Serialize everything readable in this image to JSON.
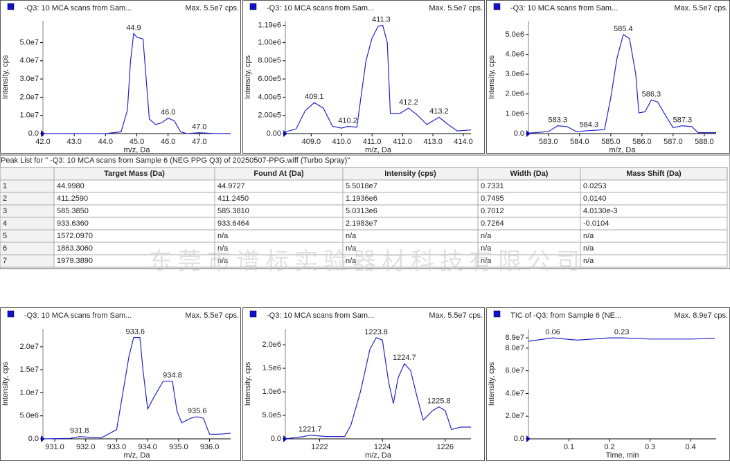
{
  "chart_data": [
    {
      "type": "line",
      "title": "-Q3: 10 MCA scans from Sam...",
      "subtitle": "Max. 5.5e7 cps.",
      "xlabel": "m/z, Da",
      "ylabel": "Intensity, cps",
      "color": "#2323c8",
      "x": [
        42.0,
        43.0,
        44.0,
        44.5,
        44.7,
        44.8,
        44.9,
        45.0,
        45.2,
        45.4,
        45.6,
        45.8,
        46.0,
        46.2,
        46.4,
        46.6,
        47.0,
        47.5,
        48.0
      ],
      "values": [
        0,
        0,
        0,
        1000000,
        13000000,
        40000000,
        55000000,
        53000000,
        52000000,
        8000000,
        5000000,
        6000000,
        8500000,
        7000000,
        1000000,
        0,
        500000,
        0,
        0
      ],
      "xlim": [
        42.0,
        48.0
      ],
      "ylim": [
        0,
        62000000
      ],
      "xticks": [
        {
          "value": 42,
          "label": "42.0"
        },
        {
          "value": 43,
          "label": "43.0"
        },
        {
          "value": 44,
          "label": "44.0"
        },
        {
          "value": 45,
          "label": "45.0"
        },
        {
          "value": 46,
          "label": "46.0"
        },
        {
          "value": 47,
          "label": "47.0"
        }
      ],
      "yticks": [
        {
          "value": 0,
          "label": "0.0"
        },
        {
          "value": 10000000,
          "label": "1.0e7"
        },
        {
          "value": 20000000,
          "label": "2.0e7"
        },
        {
          "value": 30000000,
          "label": "3.0e7"
        },
        {
          "value": 40000000,
          "label": "4.0e7"
        },
        {
          "value": 50000000,
          "label": "5.0e7"
        }
      ],
      "annotations": [
        {
          "text": "44.9",
          "x": 44.9,
          "y": 55000000
        },
        {
          "text": "46.0",
          "x": 46.0,
          "y": 8500000
        },
        {
          "text": "47.0",
          "x": 47.0,
          "y": 500000
        }
      ]
    },
    {
      "type": "line",
      "title": "-Q3: 10 MCA scans from Sam...",
      "subtitle": "Max. 5.5e7 cps.",
      "xlabel": "m/z, Da",
      "ylabel": "Intensity, cps",
      "color": "#2323c8",
      "x": [
        408.15,
        408.5,
        408.8,
        409.1,
        409.4,
        409.7,
        410.0,
        410.2,
        410.5,
        410.8,
        411.0,
        411.2,
        411.35,
        411.5,
        411.6,
        411.9,
        412.2,
        412.5,
        412.8,
        413.2,
        413.5,
        413.8,
        414.25
      ],
      "values": [
        20000,
        50000,
        250000,
        340000,
        280000,
        80000,
        60000,
        80000,
        70000,
        800000,
        1050000,
        1180000,
        1190000,
        1000000,
        220000,
        220000,
        280000,
        200000,
        100000,
        180000,
        100000,
        30000,
        40000
      ],
      "xlim": [
        408.15,
        414.25
      ],
      "ylim": [
        0,
        1240000
      ],
      "xticks": [
        {
          "value": 409,
          "label": "409.0"
        },
        {
          "value": 410,
          "label": "410.0"
        },
        {
          "value": 411,
          "label": "411.0"
        },
        {
          "value": 412,
          "label": "412.0"
        },
        {
          "value": 413,
          "label": "413.0"
        },
        {
          "value": 414,
          "label": "414.0"
        }
      ],
      "yticks": [
        {
          "value": 0,
          "label": "0.00"
        },
        {
          "value": 200000,
          "label": "2.00e5"
        },
        {
          "value": 400000,
          "label": "4.00e5"
        },
        {
          "value": 600000,
          "label": "6.00e5"
        },
        {
          "value": 800000,
          "label": "8.00e5"
        },
        {
          "value": 1000000,
          "label": "1.00e6"
        },
        {
          "value": 1190000,
          "label": "1.19e6"
        }
      ],
      "annotations": [
        {
          "text": "409.1",
          "x": 409.1,
          "y": 340000
        },
        {
          "text": "410.2",
          "x": 410.2,
          "y": 80000
        },
        {
          "text": "411.3",
          "x": 411.3,
          "y": 1190000
        },
        {
          "text": "412.2",
          "x": 412.2,
          "y": 280000
        },
        {
          "text": "413.2",
          "x": 413.2,
          "y": 180000
        }
      ]
    },
    {
      "type": "line",
      "title": "-Q3: 10 MCA scans from Sam...",
      "subtitle": "Max. 5.5e7 cps.",
      "xlabel": "m/z, Da",
      "ylabel": "Intensity, cps",
      "color": "#2323c8",
      "x": [
        582.36,
        583.0,
        583.3,
        583.6,
        583.9,
        584.3,
        584.8,
        585.0,
        585.2,
        585.4,
        585.6,
        585.8,
        585.9,
        586.1,
        586.3,
        586.5,
        586.8,
        587.0,
        587.3,
        587.6,
        587.8,
        588.38
      ],
      "values": [
        20000,
        100000,
        400000,
        350000,
        100000,
        150000,
        200000,
        1800000,
        3800000,
        5000000,
        4800000,
        3000000,
        1050000,
        1100000,
        1700000,
        1600000,
        800000,
        300000,
        400000,
        350000,
        50000,
        50000
      ],
      "xlim": [
        582.36,
        588.38
      ],
      "ylim": [
        0,
        5700000
      ],
      "xticks": [
        {
          "value": 583,
          "label": "583.0"
        },
        {
          "value": 584,
          "label": "584.0"
        },
        {
          "value": 585,
          "label": "585.0"
        },
        {
          "value": 586,
          "label": "586.0"
        },
        {
          "value": 587,
          "label": "587.0"
        },
        {
          "value": 588,
          "label": "588.0"
        }
      ],
      "yticks": [
        {
          "value": 0,
          "label": "0.0"
        },
        {
          "value": 1000000,
          "label": "1.0e6"
        },
        {
          "value": 2000000,
          "label": "2.0e6"
        },
        {
          "value": 3000000,
          "label": "3.0e6"
        },
        {
          "value": 4000000,
          "label": "4.0e6"
        },
        {
          "value": 5000000,
          "label": "5.0e6"
        }
      ],
      "annotations": [
        {
          "text": "583.3",
          "x": 583.3,
          "y": 400000
        },
        {
          "text": "584.3",
          "x": 584.3,
          "y": 150000
        },
        {
          "text": "585.4",
          "x": 585.4,
          "y": 5000000
        },
        {
          "text": "586.3",
          "x": 586.3,
          "y": 1700000
        },
        {
          "text": "587.3",
          "x": 587.3,
          "y": 400000
        }
      ]
    },
    {
      "type": "line",
      "title": "-Q3: 10 MCA scans from Sam...",
      "subtitle": "Max. 5.5e7 cps.",
      "xlabel": "m/z, Da",
      "ylabel": "Intensity, cps",
      "color": "#2323c8",
      "x": [
        930.62,
        931.5,
        931.8,
        932.5,
        933.0,
        933.2,
        933.4,
        933.55,
        933.75,
        933.85,
        934.0,
        934.2,
        934.5,
        934.8,
        934.95,
        935.1,
        935.4,
        935.6,
        935.8,
        936.0,
        936.3,
        936.68
      ],
      "values": [
        0,
        100000,
        500000,
        200000,
        2000000,
        10000000,
        18000000,
        22000000,
        22000000,
        15000000,
        6500000,
        9000000,
        12500000,
        12500000,
        6000000,
        3500000,
        4500000,
        4800000,
        4500000,
        1000000,
        1000000,
        1200000
      ],
      "xlim": [
        930.62,
        936.68
      ],
      "ylim": [
        0,
        23900000
      ],
      "xticks": [
        {
          "value": 931,
          "label": "931.0"
        },
        {
          "value": 932,
          "label": "932.0"
        },
        {
          "value": 933,
          "label": "933.0"
        },
        {
          "value": 934,
          "label": "934.0"
        },
        {
          "value": 935,
          "label": "935.0"
        },
        {
          "value": 936,
          "label": "936.0"
        }
      ],
      "yticks": [
        {
          "value": 0,
          "label": "0.0"
        },
        {
          "value": 5000000,
          "label": "5.0e6"
        },
        {
          "value": 10000000,
          "label": "1.0e7"
        },
        {
          "value": 15000000,
          "label": "1.5e7"
        },
        {
          "value": 20000000,
          "label": "2.0e7"
        }
      ],
      "annotations": [
        {
          "text": "931.8",
          "x": 931.8,
          "y": 500000
        },
        {
          "text": "933.6",
          "x": 933.6,
          "y": 22000000
        },
        {
          "text": "934.8",
          "x": 934.8,
          "y": 12500000
        },
        {
          "text": "935.6",
          "x": 935.6,
          "y": 4800000
        }
      ]
    },
    {
      "type": "line",
      "title": "-Q3: 10 MCA scans from Sam...",
      "subtitle": "Max. 5.5e7 cps.",
      "xlabel": "m/z, Da",
      "ylabel": "Intensity, cps",
      "color": "#2323c8",
      "x": [
        1220.91,
        1221.5,
        1221.7,
        1222.2,
        1222.8,
        1223.0,
        1223.3,
        1223.6,
        1223.8,
        1224.0,
        1224.2,
        1224.35,
        1224.5,
        1224.7,
        1224.9,
        1225.1,
        1225.3,
        1225.6,
        1225.8,
        1226.0,
        1226.2,
        1226.5,
        1226.82
      ],
      "values": [
        0,
        50000,
        80000,
        50000,
        50000,
        300000,
        1000000,
        1900000,
        2150000,
        2100000,
        1200000,
        750000,
        1300000,
        1600000,
        1450000,
        900000,
        400000,
        600000,
        680000,
        600000,
        200000,
        250000,
        250000
      ],
      "xlim": [
        1220.91,
        1226.82
      ],
      "ylim": [
        0,
        2340000
      ],
      "xticks": [
        1222,
        1224,
        1226
      ],
      "yticks": [
        {
          "value": 0,
          "label": "0.0"
        },
        {
          "value": 500000,
          "label": "5.0e5"
        },
        {
          "value": 1000000,
          "label": "1.0e6"
        },
        {
          "value": 1500000,
          "label": "1.5e6"
        },
        {
          "value": 2000000,
          "label": "2.0e6"
        }
      ],
      "annotations": [
        {
          "text": "1221.7",
          "x": 1221.7,
          "y": 80000
        },
        {
          "text": "1223.8",
          "x": 1223.8,
          "y": 2150000
        },
        {
          "text": "1224.7",
          "x": 1224.7,
          "y": 1600000
        },
        {
          "text": "1225.8",
          "x": 1225.8,
          "y": 680000
        }
      ]
    },
    {
      "type": "line",
      "title": "TIC of -Q3: from Sample 6 (NE...",
      "subtitle": "Max. 8.9e7 cps.",
      "xlabel": "Time, min",
      "ylabel": "Intensity, cps",
      "color": "#2323c8",
      "x": [
        0,
        0.06,
        0.12,
        0.2,
        0.23,
        0.3,
        0.4,
        0.46
      ],
      "values": [
        86000000,
        89000000,
        87000000,
        89000000,
        89000000,
        88000000,
        88000000,
        88500000
      ],
      "xlim": [
        0,
        0.463
      ],
      "ylim": [
        0,
        97000000
      ],
      "xticks": [
        0.1,
        0.2,
        0.3,
        0.4
      ],
      "yticks": [
        {
          "value": 0,
          "label": "0.0"
        },
        {
          "value": 20000000,
          "label": "2.0e7"
        },
        {
          "value": 40000000,
          "label": "4.0e7"
        },
        {
          "value": 60000000,
          "label": "6.0e7"
        },
        {
          "value": 80000000,
          "label": "8.0e7"
        },
        {
          "value": 89000000,
          "label": "8.9e7"
        }
      ],
      "annotations": [
        {
          "text": "0.06",
          "x": 0.06,
          "y": 89000000
        },
        {
          "text": "0.23",
          "x": 0.23,
          "y": 89000000
        }
      ]
    }
  ],
  "table": {
    "caption": "Peak List for \" -Q3: 10 MCA scans from Sample 6 (NEG PPG Q3) of 20250507-PPG.wiff (Turbo Spray)\"",
    "header": [
      "Target Mass (Da)",
      "Found At (Da)",
      "Intensity (cps)",
      "Width (Da)",
      "Mass Shift (Da)"
    ],
    "rows": [
      [
        "1",
        "44.9980",
        "44.9727",
        "5.5018e7",
        "0.7331",
        "0.0253"
      ],
      [
        "2",
        "411.2590",
        "411.2450",
        "1.1936e6",
        "0.7495",
        "0.0140"
      ],
      [
        "3",
        "585.3850",
        "585.3810",
        "5.0313e6",
        "0.7012",
        "4.0130e-3"
      ],
      [
        "4",
        "933.6360",
        "933.6464",
        "2.1983e7",
        "0.7264",
        "-0.0104"
      ],
      [
        "5",
        "1572.0970",
        "n/a",
        "n/a",
        "n/a",
        "n/a"
      ],
      [
        "6",
        "1863.3060",
        "n/a",
        "n/a",
        "n/a",
        "n/a"
      ],
      [
        "7",
        "1979.3890",
        "n/a",
        "n/a",
        "n/a",
        "n/a"
      ]
    ]
  },
  "watermark": "东莞市谱标实验器材科技有限公司"
}
